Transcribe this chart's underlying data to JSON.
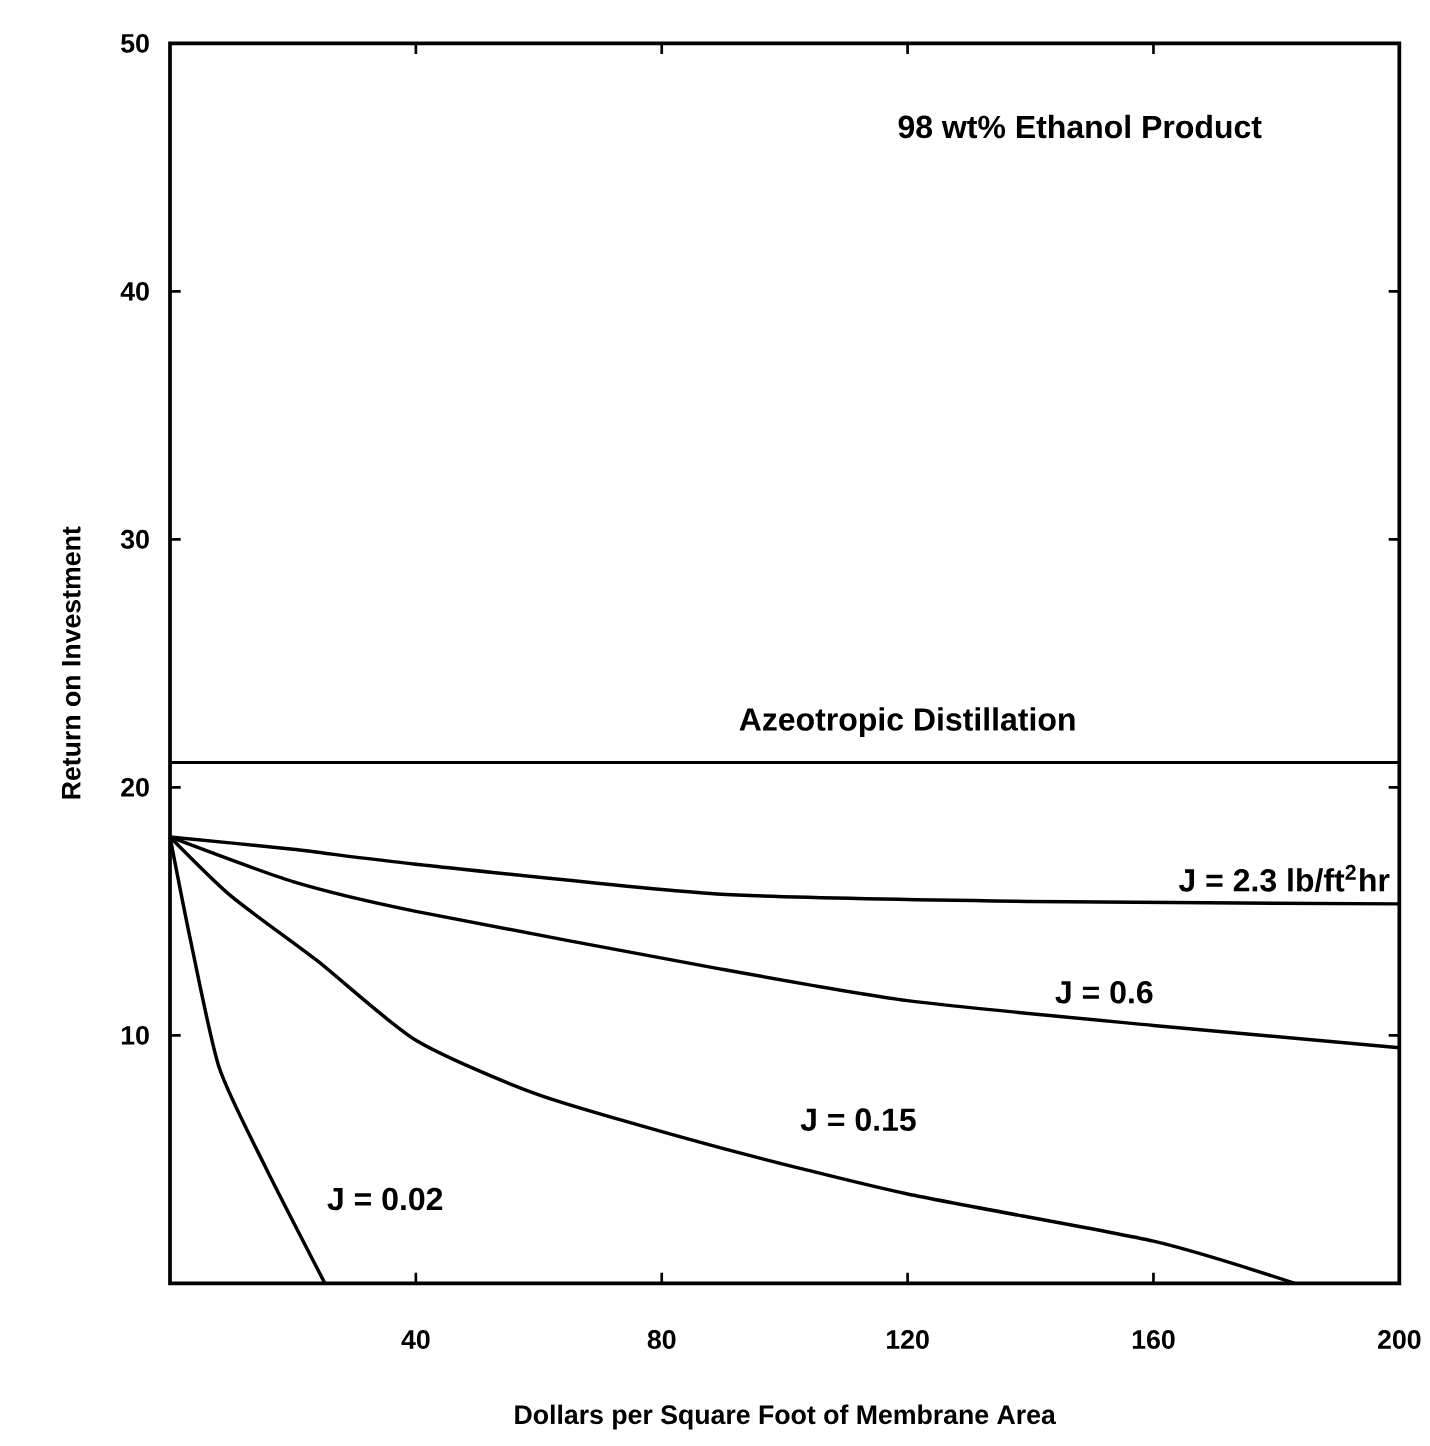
{
  "chart_data": {
    "type": "line",
    "xlabel": "Dollars per Square Foot of Membrane Area",
    "ylabel": "Return on Investment",
    "annotations": [
      "98 wt% Ethanol Product"
    ],
    "xlim": [
      0,
      200
    ],
    "ylim": [
      0,
      50
    ],
    "xticks": [
      40,
      80,
      120,
      160,
      200
    ],
    "yticks": [
      10,
      20,
      30,
      40,
      50
    ],
    "grid": false,
    "legend": false,
    "marker": "none",
    "line_style": "solid",
    "ref_lines": [
      {
        "axis": "y",
        "value": 21,
        "label": "Azeotropic Distillation",
        "color": "#000000"
      }
    ],
    "series": [
      {
        "name": "J = 2.3 lb/ft$^{2}$hr",
        "color": "#000000",
        "x": [
          0,
          20,
          40,
          89,
          140,
          200
        ],
        "values": [
          18,
          17.5,
          16.9,
          15.7,
          15.4,
          15.3
        ]
      },
      {
        "name": "J = 0.6",
        "color": "#000000",
        "x": [
          0,
          20,
          40,
          89,
          120,
          160,
          200
        ],
        "values": [
          18,
          16.2,
          15.0,
          12.7,
          11.4,
          10.4,
          9.5
        ]
      },
      {
        "name": "J = 0.15",
        "color": "#000000",
        "x": [
          0,
          10,
          24,
          40,
          60,
          89,
          120,
          160,
          183
        ],
        "values": [
          18,
          15.6,
          13.0,
          9.8,
          7.6,
          5.5,
          3.6,
          1.7,
          0
        ]
      },
      {
        "name": "J = 0.02",
        "color": "#000000",
        "x": [
          0,
          3.2,
          8,
          15.5,
          25.2
        ],
        "values": [
          18,
          14.0,
          8.7,
          4.7,
          0
        ]
      }
    ]
  }
}
